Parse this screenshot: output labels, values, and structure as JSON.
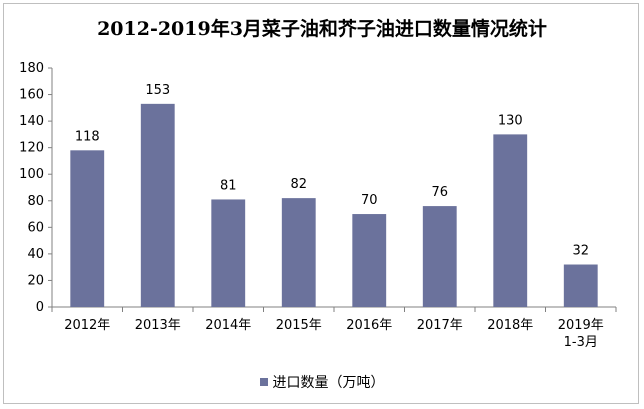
{
  "chart_data": {
    "type": "bar",
    "title": "2012-2019年3月菜子油和芥子油进口数量情况统计",
    "categories": [
      "2012年",
      "2013年",
      "2014年",
      "2015年",
      "2016年",
      "2017年",
      "2018年",
      "2019年\n1-3月"
    ],
    "series": [
      {
        "name": "进口数量（万吨）",
        "values": [
          118,
          153,
          81,
          82,
          70,
          76,
          130,
          32
        ],
        "color": "#6b729c"
      }
    ],
    "ylim": [
      0,
      180
    ],
    "yticks": [
      0,
      20,
      40,
      60,
      80,
      100,
      120,
      140,
      160,
      180
    ],
    "grid": false,
    "legend": "bottom"
  }
}
